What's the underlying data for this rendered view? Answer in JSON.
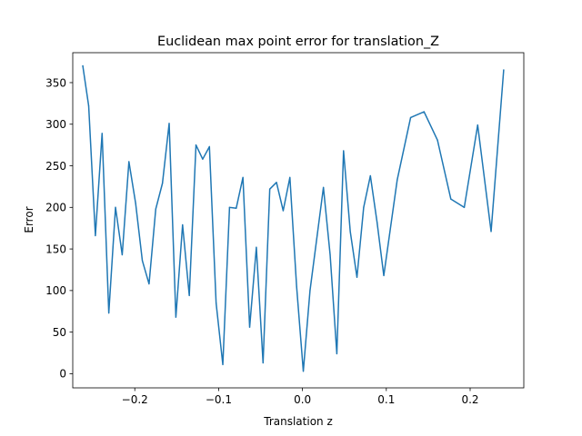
{
  "chart_data": {
    "type": "line",
    "title": "Euclidean max point error for translation_Z",
    "xlabel": "Translation z",
    "ylabel": "Error",
    "xlim": [
      -0.274,
      0.264
    ],
    "ylim": [
      -17,
      386
    ],
    "grid": false,
    "x_ticks": [
      {
        "value": -0.2,
        "label": "−0.2"
      },
      {
        "value": -0.1,
        "label": "−0.1"
      },
      {
        "value": 0.0,
        "label": "0.0"
      },
      {
        "value": 0.1,
        "label": "0.1"
      },
      {
        "value": 0.2,
        "label": "0.2"
      }
    ],
    "y_ticks": [
      {
        "value": 0,
        "label": "0"
      },
      {
        "value": 50,
        "label": "50"
      },
      {
        "value": 100,
        "label": "100"
      },
      {
        "value": 150,
        "label": "150"
      },
      {
        "value": 200,
        "label": "200"
      },
      {
        "value": 250,
        "label": "250"
      },
      {
        "value": 300,
        "label": "300"
      },
      {
        "value": 350,
        "label": "350"
      }
    ],
    "series": [
      {
        "color": "#1f77b4",
        "x": [
          -0.262,
          -0.255,
          -0.247,
          -0.239,
          -0.231,
          -0.223,
          -0.215,
          -0.207,
          -0.199,
          -0.191,
          -0.183,
          -0.175,
          -0.167,
          -0.159,
          -0.151,
          -0.143,
          -0.135,
          -0.127,
          -0.119,
          -0.111,
          -0.103,
          -0.095,
          -0.087,
          -0.079,
          -0.071,
          -0.063,
          -0.055,
          -0.047,
          -0.039,
          -0.031,
          -0.023,
          -0.015,
          -0.007,
          0.001,
          0.009,
          0.017,
          0.025,
          0.033,
          0.041,
          0.049,
          0.057,
          0.065,
          0.073,
          0.081,
          0.089,
          0.097,
          0.113,
          0.129,
          0.145,
          0.161,
          0.177,
          0.193,
          0.209,
          0.225,
          0.24
        ],
        "y": [
          370,
          322,
          166,
          289,
          73,
          200,
          143,
          255,
          205,
          136,
          108,
          198,
          229,
          301,
          68,
          179,
          94,
          275,
          258,
          273,
          85,
          11,
          200,
          199,
          236,
          56,
          152,
          13,
          222,
          230,
          196,
          236,
          105,
          3,
          100,
          162,
          224,
          143,
          24,
          268,
          171,
          116,
          200,
          238,
          182,
          118,
          233,
          308,
          315,
          281,
          210,
          200,
          299,
          171,
          365
        ]
      }
    ]
  }
}
